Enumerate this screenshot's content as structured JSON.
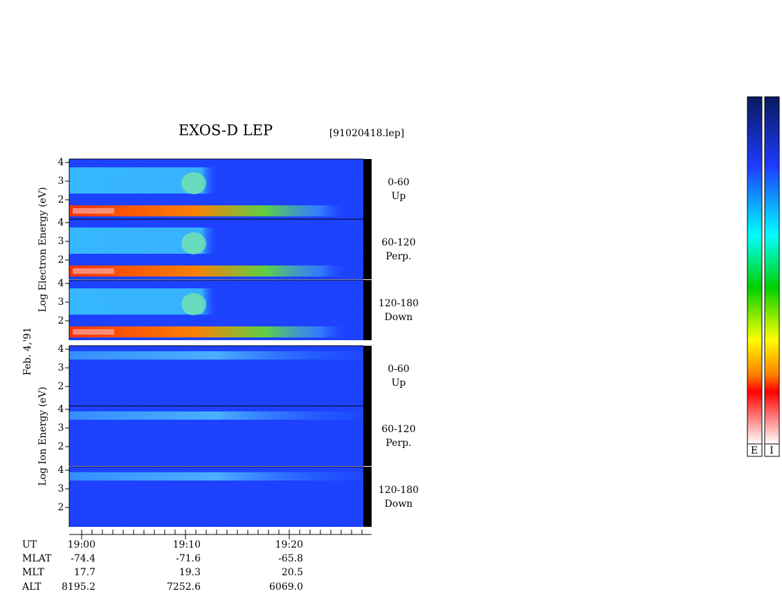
{
  "header": {
    "title": "EXOS-D LEP",
    "file": "[91020418.lep]"
  },
  "date": "Feb. 4,'91",
  "electron": {
    "axis_label": "Log  Electron  Energy (eV)",
    "panels": [
      {
        "ticks": [
          "4",
          "3",
          "2"
        ],
        "pitch": "0-60",
        "direction": "Up"
      },
      {
        "ticks": [
          "4",
          "3",
          "2"
        ],
        "pitch": "60-120",
        "direction": "Perp."
      },
      {
        "ticks": [
          "4",
          "3",
          "2"
        ],
        "pitch": "120-180",
        "direction": "Down"
      }
    ]
  },
  "ion": {
    "axis_label": "Log  Ion  Energy (eV)",
    "panels": [
      {
        "ticks": [
          "4",
          "3",
          "2"
        ],
        "pitch": "0-60",
        "direction": "Up"
      },
      {
        "ticks": [
          "4",
          "3",
          "2"
        ],
        "pitch": "60-120",
        "direction": "Perp."
      },
      {
        "ticks": [
          "4",
          "3",
          "2"
        ],
        "pitch": "120-180",
        "direction": "Down"
      }
    ]
  },
  "footer": {
    "row_labels": [
      "UT",
      "MLAT",
      "MLT",
      "ALT"
    ],
    "rows": [
      [
        "19:00",
        "19:10",
        "19:20"
      ],
      [
        "-74.4",
        "-71.6",
        "-65.8"
      ],
      [
        "17.7",
        "19.3",
        "20.5"
      ],
      [
        "8195.2",
        "7252.6",
        "6069.0"
      ]
    ]
  },
  "colorbars": {
    "labels": [
      "E",
      "I"
    ]
  }
}
